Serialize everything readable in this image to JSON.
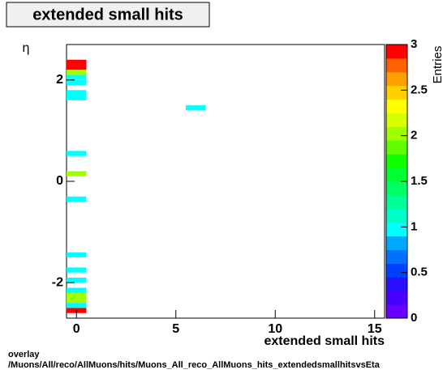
{
  "chart_data": {
    "type": "heatmap",
    "title": "extended small hits",
    "xlabel": "extended small hits",
    "ylabel": "η",
    "zlabel": "Entries",
    "xlim": [
      -0.5,
      15.5
    ],
    "ylim": [
      -2.7,
      2.7
    ],
    "zlim": [
      0,
      3
    ],
    "xticks": [
      0,
      5,
      10,
      15
    ],
    "yticks": [
      -2,
      0,
      2
    ],
    "zticks": [
      0,
      0.5,
      1,
      1.5,
      2,
      2.5,
      3
    ],
    "bin_size": [
      1,
      0.1
    ],
    "cells": {
      "x": [
        0,
        0,
        0,
        0,
        0,
        0,
        0,
        6,
        0,
        0,
        0,
        0,
        0,
        0,
        0,
        0,
        0,
        0,
        0
      ],
      "y": [
        2.35,
        2.25,
        2.15,
        2.05,
        1.95,
        1.75,
        1.65,
        1.45,
        0.55,
        0.15,
        -0.35,
        -1.45,
        -1.75,
        -1.95,
        -2.15,
        -2.25,
        -2.35,
        -2.45,
        -2.55
      ],
      "values": [
        3,
        3,
        2,
        1,
        1,
        1,
        1,
        1,
        1,
        2,
        1,
        1,
        1,
        1,
        1,
        2,
        2,
        1,
        3
      ]
    },
    "palette": [
      "#6a00ff",
      "#4800ff",
      "#2a10ff",
      "#0040ff",
      "#0070ff",
      "#00a8ff",
      "#00ffff",
      "#00ffc8",
      "#00ff96",
      "#00ff64",
      "#00ff32",
      "#10ff00",
      "#60ff00",
      "#a0ff00",
      "#d8ff00",
      "#ffff00",
      "#ffd000",
      "#ffa000",
      "#ff6000",
      "#ff0000"
    ]
  },
  "footer": [
    "overlay",
    "/Muons/All/reco/AllMuons/hits/Muons_All_reco_AllMuons_hits_extendedsmallhitsvsEta"
  ]
}
